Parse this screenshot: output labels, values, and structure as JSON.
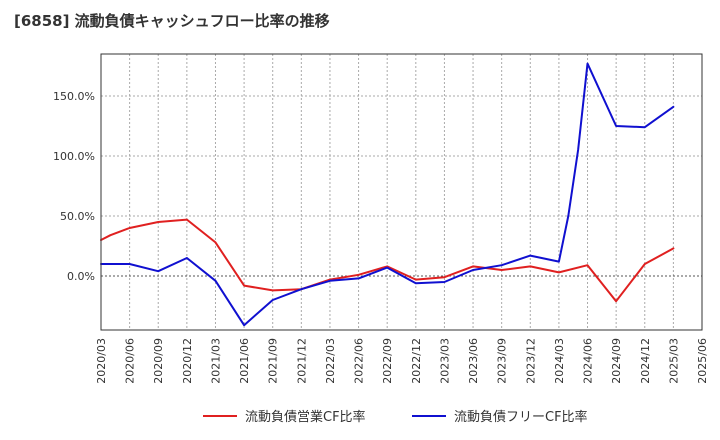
{
  "chart_data": {
    "type": "line",
    "title": "[6858]  流動負債キャッシュフロー比率の推移",
    "xlabel": "",
    "ylabel": "",
    "ylim": [
      -45,
      185
    ],
    "yticks": [
      0,
      50,
      100,
      150
    ],
    "ytick_labels": [
      "0.0%",
      "50.0%",
      "100.0%",
      "150.0%"
    ],
    "x": [
      "2020/03",
      "2020/06",
      "2020/09",
      "2020/12",
      "2021/03",
      "2021/06",
      "2021/09",
      "2021/12",
      "2022/03",
      "2022/06",
      "2022/09",
      "2022/12",
      "2023/03",
      "2023/06",
      "2023/09",
      "2023/12",
      "2024/03",
      "2024/06",
      "2024/09",
      "2024/12",
      "2025/03",
      "2025/06"
    ],
    "legend_position": "bottom",
    "grid": true,
    "series": [
      {
        "name": "流動負債営業CF比率",
        "color": "#e02020",
        "points": [
          {
            "x": 0,
            "y": 30
          },
          {
            "x": 0.33,
            "y": 34
          },
          {
            "x": 1,
            "y": 40
          },
          {
            "x": 2,
            "y": 45
          },
          {
            "x": 3,
            "y": 47
          },
          {
            "x": 4,
            "y": 28
          },
          {
            "x": 5,
            "y": -8
          },
          {
            "x": 6,
            "y": -12
          },
          {
            "x": 7,
            "y": -11
          },
          {
            "x": 8,
            "y": -3
          },
          {
            "x": 9,
            "y": 1
          },
          {
            "x": 10,
            "y": 8
          },
          {
            "x": 11,
            "y": -3
          },
          {
            "x": 12,
            "y": -1
          },
          {
            "x": 13,
            "y": 8
          },
          {
            "x": 14,
            "y": 5
          },
          {
            "x": 15,
            "y": 8
          },
          {
            "x": 16,
            "y": 3
          },
          {
            "x": 17,
            "y": 9
          },
          {
            "x": 18,
            "y": -21
          },
          {
            "x": 19,
            "y": 10
          },
          {
            "x": 20,
            "y": 23
          }
        ]
      },
      {
        "name": "流動負債フリーCF比率",
        "color": "#1010d0",
        "points": [
          {
            "x": 0,
            "y": 10
          },
          {
            "x": 1,
            "y": 10
          },
          {
            "x": 2,
            "y": 4
          },
          {
            "x": 3,
            "y": 15
          },
          {
            "x": 4,
            "y": -4
          },
          {
            "x": 5,
            "y": -41
          },
          {
            "x": 6,
            "y": -20
          },
          {
            "x": 7,
            "y": -11
          },
          {
            "x": 8,
            "y": -4
          },
          {
            "x": 9,
            "y": -2
          },
          {
            "x": 10,
            "y": 7
          },
          {
            "x": 11,
            "y": -6
          },
          {
            "x": 12,
            "y": -5
          },
          {
            "x": 13,
            "y": 5
          },
          {
            "x": 14,
            "y": 9
          },
          {
            "x": 15,
            "y": 17
          },
          {
            "x": 16,
            "y": 12
          },
          {
            "x": 16.33,
            "y": 50
          },
          {
            "x": 16.67,
            "y": 105
          },
          {
            "x": 17,
            "y": 177
          },
          {
            "x": 18,
            "y": 125
          },
          {
            "x": 19,
            "y": 124
          },
          {
            "x": 20,
            "y": 141
          }
        ]
      }
    ]
  }
}
